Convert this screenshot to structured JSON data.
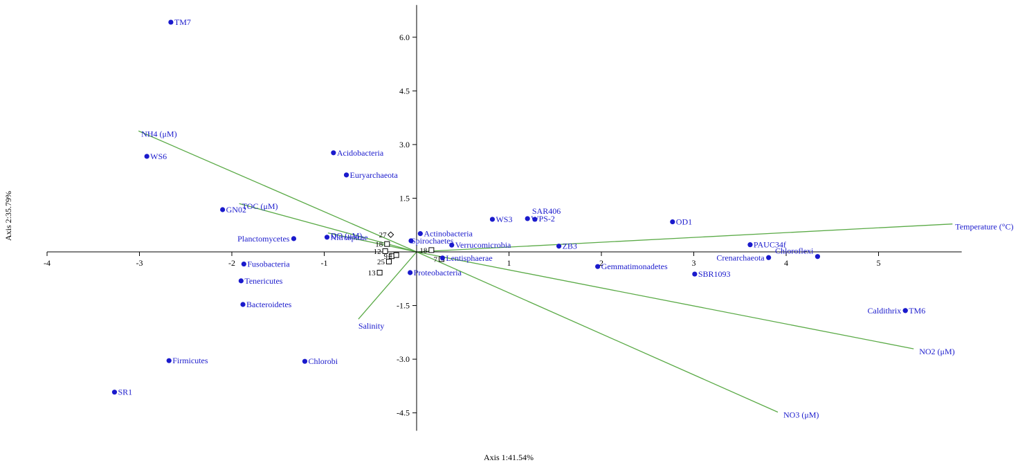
{
  "chart_data": {
    "type": "scatter",
    "subtype": "biplot",
    "title": "",
    "xlabel": "Axis 1:41.54%",
    "ylabel": "Axis 2:35.79%",
    "xlim": [
      -4,
      5.9
    ],
    "ylim": [
      -5.0,
      6.9
    ],
    "x_ticks": [
      -4,
      -3,
      -2,
      -1,
      1,
      2,
      3,
      4,
      5
    ],
    "y_ticks": [
      6.0,
      4.5,
      3.0,
      1.5,
      -1.5,
      -3.0,
      -4.5
    ],
    "x_tick_labels": [
      "-4",
      "-3",
      "-2",
      "-1",
      "1",
      "2",
      "3",
      "4",
      "5"
    ],
    "y_tick_labels": [
      "6.0",
      "4.5",
      "3.0",
      "1.5",
      "-1.5",
      "-3.0",
      "-4.5"
    ],
    "grid": false,
    "colors": {
      "points": "#1a1acc",
      "vectors": "#5aaa46",
      "axes": "#000000"
    },
    "taxa": [
      {
        "label": "TM7",
        "x": -2.66,
        "y": 6.42
      },
      {
        "label": "WS6",
        "x": -2.92,
        "y": 2.67
      },
      {
        "label": "GN02",
        "x": -2.1,
        "y": 1.18
      },
      {
        "label": "Acidobacteria",
        "x": -0.9,
        "y": 2.77
      },
      {
        "label": "Euryarchaeota",
        "x": -0.76,
        "y": 2.15
      },
      {
        "label": "Planctomycetes",
        "x": -1.33,
        "y": 0.37
      },
      {
        "label": "Nitrospirae",
        "x": -0.97,
        "y": 0.41
      },
      {
        "label": "Fusobacteria",
        "x": -1.87,
        "y": -0.34
      },
      {
        "label": "Tenericutes",
        "x": -1.9,
        "y": -0.81
      },
      {
        "label": "Bacteroidetes",
        "x": -1.88,
        "y": -1.47
      },
      {
        "label": "Firmicutes",
        "x": -2.68,
        "y": -3.04
      },
      {
        "label": "SR1",
        "x": -3.27,
        "y": -3.92
      },
      {
        "label": "Chlorobi",
        "x": -1.21,
        "y": -3.06
      },
      {
        "label": "Actinobacteria",
        "x": 0.04,
        "y": 0.51
      },
      {
        "label": "Spirochaetes",
        "x": -0.06,
        "y": 0.31
      },
      {
        "label": "Verrucomicrobia",
        "x": 0.38,
        "y": 0.19
      },
      {
        "label": "Lentisphaerae",
        "x": 0.28,
        "y": -0.17
      },
      {
        "label": "Proteobacteria",
        "x": -0.07,
        "y": -0.58
      },
      {
        "label": "SAR406",
        "x": 1.28,
        "y": 0.91
      },
      {
        "label": "WS3",
        "x": 0.82,
        "y": 0.91
      },
      {
        "label": "WPS-2",
        "x": 1.2,
        "y": 0.93
      },
      {
        "label": "ZB3",
        "x": 1.54,
        "y": 0.16
      },
      {
        "label": "OD1",
        "x": 2.77,
        "y": 0.84
      },
      {
        "label": "Gemmatimonadetes",
        "x": 1.96,
        "y": -0.41
      },
      {
        "label": "SBR1093",
        "x": 3.01,
        "y": -0.62
      },
      {
        "label": "PAUC34f",
        "x": 3.61,
        "y": 0.2
      },
      {
        "label": "Crenarchaeota",
        "x": 3.81,
        "y": -0.16
      },
      {
        "label": "Chloroflexi",
        "x": 4.34,
        "y": -0.13
      },
      {
        "label": "Caldithrix",
        "x": 5.29,
        "y": -1.64
      },
      {
        "label": "TM6",
        "x": 5.29,
        "y": -1.64
      }
    ],
    "env_vectors": [
      {
        "label": "NH4 (μM)",
        "x": -3.01,
        "y": 3.38
      },
      {
        "label": "TOC (μM)",
        "x": -1.92,
        "y": 1.35
      },
      {
        "label": "DO (μM)",
        "x": -0.96,
        "y": 0.53
      },
      {
        "label": "Salinity",
        "x": -0.63,
        "y": -1.88
      },
      {
        "label": "Temperature (°C)",
        "x": 5.8,
        "y": 0.78
      },
      {
        "label": "NO2 (μM)",
        "x": 5.38,
        "y": -2.71
      },
      {
        "label": "NO3 (μM)",
        "x": 3.91,
        "y": -4.48
      }
    ],
    "samples": [
      {
        "label": "27",
        "x": -0.28,
        "y": 0.48,
        "marker": "diamond"
      },
      {
        "label": "18",
        "x": -0.32,
        "y": 0.22,
        "marker": "square"
      },
      {
        "label": "12",
        "x": -0.34,
        "y": 0.02,
        "marker": "square"
      },
      {
        "label": "9",
        "x": -0.27,
        "y": -0.12,
        "marker": "square"
      },
      {
        "label": "4",
        "x": -0.22,
        "y": -0.09,
        "marker": "square"
      },
      {
        "label": "25",
        "x": -0.3,
        "y": -0.27,
        "marker": "square"
      },
      {
        "label": "13",
        "x": -0.4,
        "y": -0.58,
        "marker": "square"
      },
      {
        "label": "18",
        "x": 0.16,
        "y": 0.05,
        "marker": "square"
      },
      {
        "label": "7",
        "x": 0.27,
        "y": -0.2,
        "marker": "square"
      }
    ]
  }
}
